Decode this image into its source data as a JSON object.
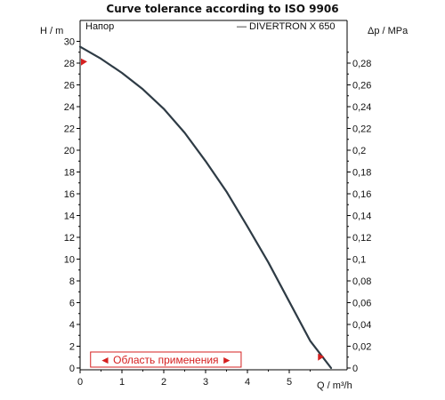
{
  "chart_data": {
    "type": "line",
    "title": "Curve tolerance according to ISO 9906",
    "ylabel": "H / m",
    "y2label": "Δp / MPa",
    "xlabel": "Q / m³/h",
    "panel_label": "Напор",
    "legend": "— DIVERTRON X 650",
    "legend_position": "top-right",
    "xlim": [
      0,
      6
    ],
    "ylim": [
      0,
      31
    ],
    "y2lim": [
      0,
      0.3
    ],
    "grid": false,
    "x_ticks": [
      "0",
      "1",
      "2",
      "3",
      "4",
      "5"
    ],
    "y_ticks": [
      "0",
      "2",
      "4",
      "6",
      "8",
      "10",
      "12",
      "14",
      "16",
      "18",
      "20",
      "22",
      "24",
      "26",
      "28",
      "30"
    ],
    "y2_ticks": [
      "0",
      "0,02",
      "0,04",
      "0,06",
      "0,08",
      "0,1",
      "0,12",
      "0,14",
      "0,16",
      "0,18",
      "0,2",
      "0,22",
      "0,24",
      "0,26",
      "0,28"
    ],
    "series": [
      {
        "name": "DIVERTRON X 650",
        "color": "#2e3b45",
        "x": [
          0,
          0.5,
          1.0,
          1.5,
          2.0,
          2.5,
          3.0,
          3.5,
          4.0,
          4.5,
          5.0,
          5.5,
          6.0
        ],
        "y": [
          29.5,
          28.4,
          27.1,
          25.6,
          23.8,
          21.6,
          19.0,
          16.2,
          13.0,
          9.7,
          6.1,
          2.5,
          0
        ]
      }
    ],
    "markers": [
      {
        "x": 0,
        "y": 28.1,
        "direction": "left",
        "color": "#d62020"
      },
      {
        "x": 5.75,
        "y": 1.0,
        "direction": "right",
        "color": "#d62020"
      }
    ],
    "range": {
      "label": "◄ Область применения ►",
      "x_start": 0.25,
      "x_end": 3.85,
      "color": "#d62020"
    }
  }
}
